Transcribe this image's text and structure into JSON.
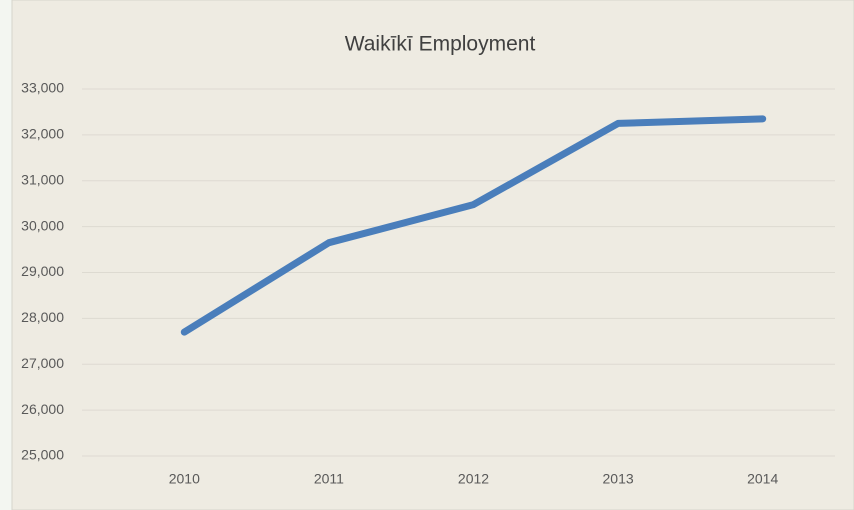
{
  "chart_data": {
    "type": "line",
    "title": "Waikīkī Employment",
    "categories": [
      "2010",
      "2011",
      "2012",
      "2013",
      "2014"
    ],
    "series": [
      {
        "name": "Employment",
        "color": "#4a7ebb",
        "values": [
          27700,
          29650,
          30480,
          32250,
          32350
        ]
      }
    ],
    "ylim": [
      25000,
      33000
    ],
    "yticks": [
      {
        "value": 25000,
        "label": "25,000"
      },
      {
        "value": 26000,
        "label": "26,000"
      },
      {
        "value": 27000,
        "label": "27,000"
      },
      {
        "value": 28000,
        "label": "28,000"
      },
      {
        "value": 29000,
        "label": "29,000"
      },
      {
        "value": 30000,
        "label": "30,000"
      },
      {
        "value": 31000,
        "label": "31,000"
      },
      {
        "value": 32000,
        "label": "32,000"
      },
      {
        "value": 33000,
        "label": "33,000"
      }
    ],
    "grid": true,
    "legend": false
  }
}
